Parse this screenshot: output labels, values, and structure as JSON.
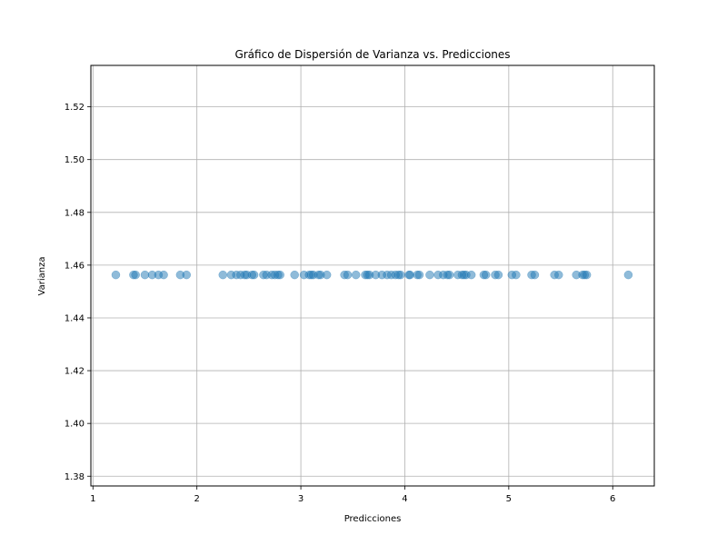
{
  "chart_data": {
    "type": "scatter",
    "title": "Gráfico de Dispersión de Varianza vs. Predicciones",
    "xlabel": "Predicciones",
    "ylabel": "Varianza",
    "xlim": [
      0.98,
      6.4
    ],
    "ylim": [
      1.3763,
      1.5357
    ],
    "xticks": [
      1,
      2,
      3,
      4,
      5,
      6
    ],
    "xtick_labels": [
      "1",
      "2",
      "3",
      "4",
      "5",
      "6"
    ],
    "yticks": [
      1.38,
      1.4,
      1.42,
      1.44,
      1.46,
      1.48,
      1.5,
      1.52
    ],
    "ytick_labels": [
      "1.38",
      "1.40",
      "1.42",
      "1.44",
      "1.46",
      "1.48",
      "1.50",
      "1.52"
    ],
    "grid": true,
    "marker_color": "#1f77b4",
    "marker_alpha": 0.5,
    "series": [
      {
        "x": [
          1.22,
          1.39,
          1.41,
          1.5,
          1.57,
          1.63,
          1.68,
          1.84,
          1.9,
          2.25,
          2.33,
          2.38,
          2.42,
          2.46,
          2.48,
          2.53,
          2.55,
          2.64,
          2.67,
          2.72,
          2.75,
          2.78,
          2.8,
          2.94,
          3.03,
          3.08,
          3.1,
          3.12,
          3.17,
          3.19,
          3.25,
          3.42,
          3.45,
          3.53,
          3.62,
          3.64,
          3.66,
          3.72,
          3.78,
          3.83,
          3.87,
          3.91,
          3.94,
          3.96,
          4.04,
          4.05,
          4.12,
          4.14,
          4.24,
          4.32,
          4.37,
          4.41,
          4.43,
          4.51,
          4.55,
          4.57,
          4.59,
          4.64,
          4.76,
          4.78,
          4.87,
          4.9,
          5.03,
          5.07,
          5.22,
          5.25,
          5.44,
          5.48,
          5.65,
          5.71,
          5.73,
          5.75,
          6.15
        ],
        "y": [
          1.4563,
          1.4563,
          1.4563,
          1.4563,
          1.4563,
          1.4563,
          1.4563,
          1.4563,
          1.4563,
          1.4563,
          1.4563,
          1.4563,
          1.4563,
          1.4563,
          1.4563,
          1.4563,
          1.4563,
          1.4563,
          1.4563,
          1.4563,
          1.4563,
          1.4563,
          1.4563,
          1.4563,
          1.4563,
          1.4563,
          1.4563,
          1.4563,
          1.4563,
          1.4563,
          1.4563,
          1.4563,
          1.4563,
          1.4563,
          1.4563,
          1.4563,
          1.4563,
          1.4563,
          1.4563,
          1.4563,
          1.4563,
          1.4563,
          1.4563,
          1.4563,
          1.4563,
          1.4563,
          1.4563,
          1.4563,
          1.4563,
          1.4563,
          1.4563,
          1.4563,
          1.4563,
          1.4563,
          1.4563,
          1.4563,
          1.4563,
          1.4563,
          1.4563,
          1.4563,
          1.4563,
          1.4563,
          1.4563,
          1.4563,
          1.4563,
          1.4563,
          1.4563,
          1.4563,
          1.4563,
          1.4563,
          1.4563,
          1.4563,
          1.4563
        ]
      }
    ]
  }
}
